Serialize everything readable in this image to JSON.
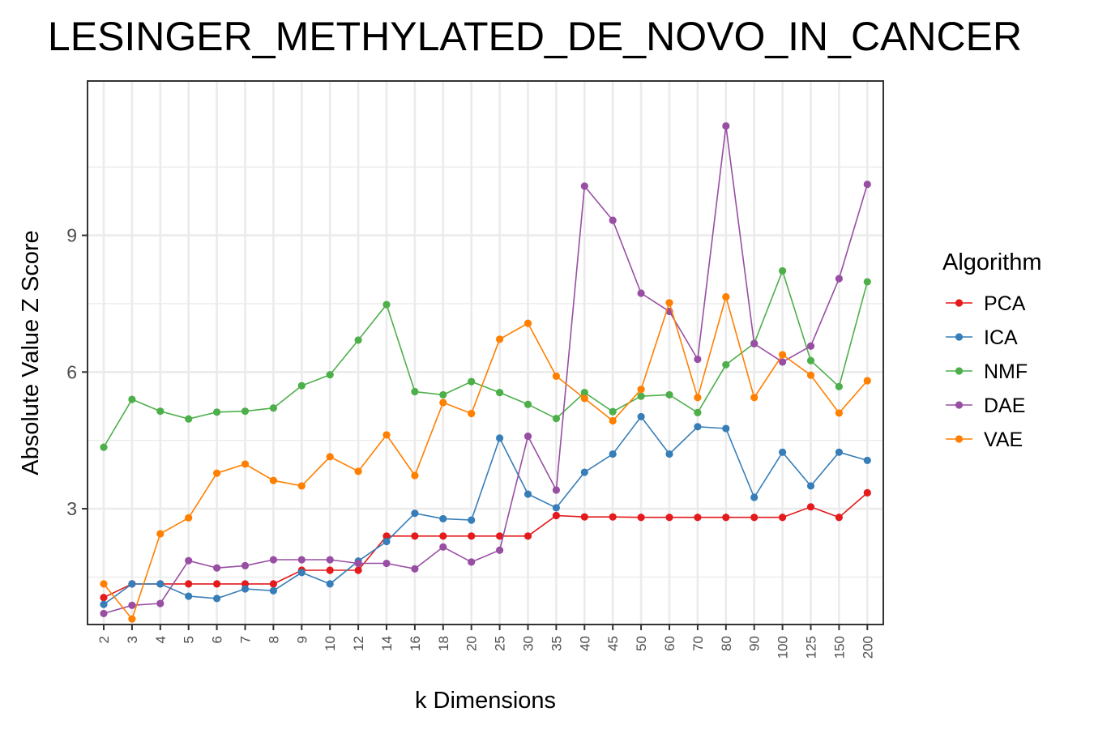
{
  "chart_data": {
    "type": "line",
    "title": "LESINGER_METHYLATED_DE_NOVO_IN_CANCER",
    "xlabel": "k Dimensions",
    "ylabel": "Absolute Value Z Score",
    "categories": [
      "2",
      "3",
      "4",
      "5",
      "6",
      "7",
      "8",
      "9",
      "10",
      "12",
      "14",
      "16",
      "18",
      "20",
      "25",
      "30",
      "35",
      "40",
      "45",
      "50",
      "60",
      "70",
      "80",
      "90",
      "100",
      "125",
      "150",
      "200"
    ],
    "ylim": [
      0.0,
      12.0
    ],
    "yticks": [
      3,
      6,
      9
    ],
    "grid": true,
    "legend": {
      "title": "Algorithm",
      "position": "right"
    },
    "series": [
      {
        "name": "PCA",
        "color": "#e41a1c",
        "values": [
          1.05,
          1.35,
          1.35,
          1.35,
          1.35,
          1.35,
          1.35,
          1.65,
          1.65,
          1.65,
          2.4,
          2.4,
          2.4,
          2.4,
          2.4,
          2.4,
          2.85,
          2.82,
          2.82,
          2.81,
          2.81,
          2.81,
          2.81,
          2.81,
          2.81,
          3.04,
          2.81,
          3.35
        ]
      },
      {
        "name": "ICA",
        "color": "#377eb8",
        "values": [
          0.9,
          1.35,
          1.35,
          1.08,
          1.03,
          1.24,
          1.2,
          1.6,
          1.35,
          1.85,
          2.28,
          2.9,
          2.78,
          2.75,
          4.55,
          3.32,
          3.02,
          3.8,
          4.2,
          5.02,
          4.2,
          4.8,
          4.76,
          3.25,
          4.24,
          3.5,
          4.24,
          4.06
        ]
      },
      {
        "name": "NMF",
        "color": "#4daf4a",
        "values": [
          4.35,
          5.4,
          5.14,
          4.97,
          5.12,
          5.14,
          5.21,
          5.7,
          5.94,
          6.7,
          7.48,
          5.57,
          5.5,
          5.79,
          5.55,
          5.29,
          4.98,
          5.55,
          5.13,
          5.47,
          5.5,
          5.11,
          6.16,
          6.63,
          8.22,
          6.25,
          5.68,
          7.98
        ]
      },
      {
        "name": "DAE",
        "color": "#984ea3",
        "values": [
          0.7,
          0.88,
          0.92,
          1.86,
          1.7,
          1.75,
          1.88,
          1.88,
          1.88,
          1.8,
          1.8,
          1.68,
          2.16,
          1.83,
          2.09,
          4.59,
          3.41,
          10.08,
          9.33,
          7.73,
          7.33,
          6.28,
          11.4,
          6.62,
          6.22,
          6.57,
          8.05,
          10.12
        ]
      },
      {
        "name": "VAE",
        "color": "#ff7f00",
        "values": [
          1.35,
          0.58,
          2.45,
          2.8,
          3.78,
          3.98,
          3.62,
          3.5,
          4.14,
          3.82,
          4.62,
          3.73,
          5.33,
          5.09,
          6.72,
          7.07,
          5.91,
          5.42,
          4.93,
          5.62,
          7.52,
          5.44,
          7.65,
          5.44,
          6.38,
          5.93,
          5.1,
          5.81
        ]
      }
    ]
  }
}
